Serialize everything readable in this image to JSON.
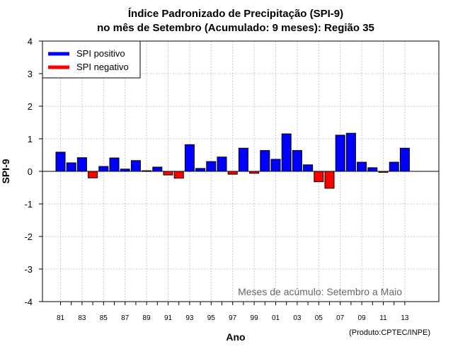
{
  "chart_data": {
    "type": "bar",
    "title_line1": "Índice Padronizado de Precipitação (SPI-9)",
    "title_line2": "no mês de Setembro (Acumulado: 9 meses): Região 35",
    "xlabel": "Ano",
    "ylabel": "SPI-9",
    "ylim": [
      -4,
      4
    ],
    "yticks": [
      -4,
      -3,
      -2,
      -1,
      0,
      1,
      2,
      3,
      4
    ],
    "xtick_labels": [
      "81",
      "83",
      "85",
      "87",
      "89",
      "91",
      "93",
      "95",
      "97",
      "99",
      "01",
      "03",
      "05",
      "07",
      "09",
      "11",
      "13"
    ],
    "years": [
      1981,
      1982,
      1983,
      1984,
      1985,
      1986,
      1987,
      1988,
      1989,
      1990,
      1991,
      1992,
      1993,
      1994,
      1995,
      1996,
      1997,
      1998,
      1999,
      2000,
      2001,
      2002,
      2003,
      2004,
      2005,
      2006,
      2007,
      2008,
      2009,
      2010,
      2011,
      2012,
      2013
    ],
    "values": [
      0.59,
      0.26,
      0.42,
      -0.2,
      0.15,
      0.41,
      0.07,
      0.33,
      0.02,
      0.13,
      -0.11,
      -0.21,
      0.82,
      0.09,
      0.3,
      0.44,
      -0.09,
      0.71,
      -0.06,
      0.64,
      0.37,
      1.15,
      0.64,
      0.2,
      -0.32,
      -0.52,
      1.11,
      1.17,
      0.28,
      0.11,
      -0.03,
      0.28,
      0.71
    ],
    "legend": [
      {
        "label": "SPI positivo",
        "color": "#0000ff"
      },
      {
        "label": "SPI negativo",
        "color": "#ff0000"
      }
    ],
    "positive_color": "#0000ff",
    "negative_color": "#ff0000",
    "grid": true,
    "legend_position": "top-left",
    "annotation": "Meses de acúmulo: Setembro a Maio",
    "credit": "(Produto:CPTEC/INPE)"
  }
}
